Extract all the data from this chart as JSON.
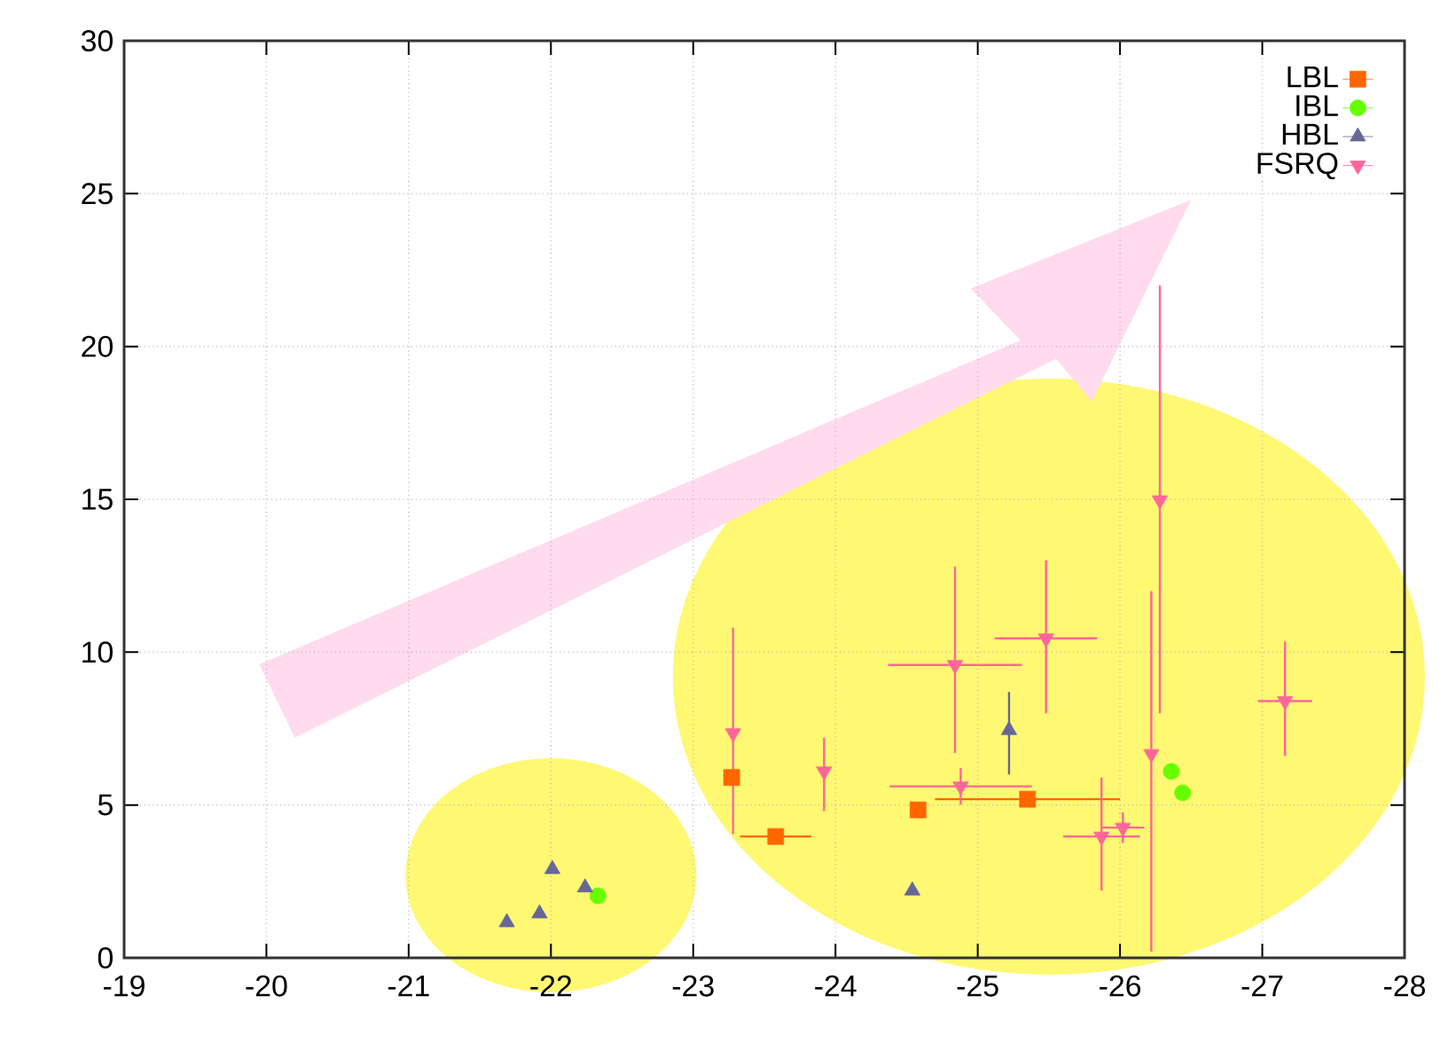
{
  "chart_data": {
    "type": "scatter",
    "xlim": [
      -19,
      -28
    ],
    "ylim": [
      0,
      30
    ],
    "xticks": [
      -19,
      -20,
      -21,
      -22,
      -23,
      -24,
      -25,
      -26,
      -27,
      -28
    ],
    "yticks": [
      0,
      5,
      10,
      15,
      20,
      25,
      30
    ],
    "grid": true,
    "legend": "top right",
    "series": [
      {
        "name": "LBL",
        "color": "#ff6600",
        "marker": "square",
        "x": [
          -23.27,
          -23.58,
          -24.58,
          -25.35
        ],
        "values": [
          5.9,
          3.97,
          4.84,
          5.19
        ],
        "errors": [
          null,
          null,
          null,
          null
        ],
        "xerrors": [
          null,
          0.25,
          null,
          0.65
        ]
      },
      {
        "name": "IBL",
        "color": "#66ff00",
        "marker": "circle",
        "x": [
          -22.33,
          -26.36,
          -26.44
        ],
        "values": [
          2.03,
          6.1,
          5.4
        ]
      },
      {
        "name": "HBL",
        "color": "#666699",
        "marker": "triangle",
        "x": [
          -22.01,
          -22.24,
          -21.92,
          -21.69,
          -25.22,
          -24.54
        ],
        "values": [
          2.9,
          2.3,
          1.45,
          1.16,
          7.45,
          2.2
        ],
        "errors": [
          null,
          null,
          null,
          null,
          [
            6.0,
            8.7
          ],
          null
        ]
      },
      {
        "name": "FSRQ",
        "color": "#ff6699",
        "marker": "triangle_down",
        "x": [
          -23.28,
          -23.92,
          -24.84,
          -25.48,
          -24.88,
          -25.87,
          -26.02,
          -26.22,
          -26.28,
          -27.16
        ],
        "values": [
          7.35,
          6.1,
          9.58,
          10.45,
          5.61,
          3.97,
          4.26,
          6.67,
          14.97,
          8.4
        ],
        "errors": [
          [
            4.05,
            10.8
          ],
          [
            4.8,
            7.2
          ],
          [
            6.7,
            12.8
          ],
          [
            8.0,
            13.0
          ],
          0.6,
          [
            2.2,
            5.9
          ],
          0.5,
          [
            0.2,
            12.0
          ],
          [
            8.0,
            22.0
          ],
          [
            6.6,
            10.35
          ]
        ],
        "xerrors": [
          null,
          null,
          0.47,
          0.36,
          0.5,
          0.27,
          0.15,
          null,
          null,
          0.19
        ]
      }
    ]
  }
}
